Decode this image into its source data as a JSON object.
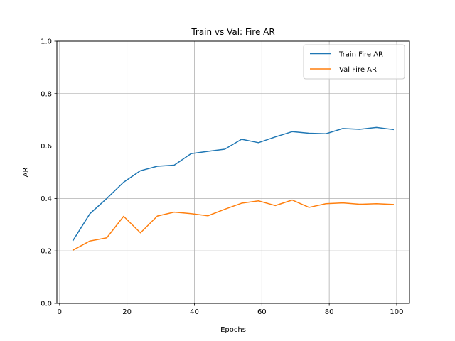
{
  "chart_data": {
    "type": "line",
    "title": "Train vs Val: Fire AR",
    "xlabel": "Epochs",
    "ylabel": "AR",
    "xlim": [
      -0.8,
      103.8
    ],
    "ylim": [
      0.0,
      1.0
    ],
    "xticks": [
      0,
      20,
      40,
      60,
      80,
      100
    ],
    "yticks": [
      0.0,
      0.2,
      0.4,
      0.6,
      0.8,
      1.0
    ],
    "xtick_labels": [
      "0",
      "20",
      "40",
      "60",
      "80",
      "100"
    ],
    "ytick_labels": [
      "0.0",
      "0.2",
      "0.4",
      "0.6",
      "0.8",
      "1.0"
    ],
    "grid": true,
    "legend_position": "top-right",
    "x": [
      4,
      9,
      14,
      19,
      24,
      29,
      34,
      39,
      44,
      49,
      54,
      59,
      64,
      69,
      74,
      79,
      84,
      89,
      94,
      99
    ],
    "series": [
      {
        "name": "Train Fire AR",
        "color": "#1f77b4",
        "values": [
          0.24,
          0.342,
          0.4,
          0.462,
          0.506,
          0.523,
          0.527,
          0.571,
          0.58,
          0.588,
          0.626,
          0.613,
          0.635,
          0.655,
          0.649,
          0.647,
          0.667,
          0.664,
          0.671,
          0.663
        ]
      },
      {
        "name": "Val Fire AR",
        "color": "#ff7f0e",
        "values": [
          0.203,
          0.238,
          0.25,
          0.332,
          0.269,
          0.333,
          0.348,
          0.342,
          0.334,
          0.359,
          0.382,
          0.391,
          0.373,
          0.394,
          0.366,
          0.38,
          0.383,
          0.378,
          0.38,
          0.377
        ]
      }
    ]
  }
}
